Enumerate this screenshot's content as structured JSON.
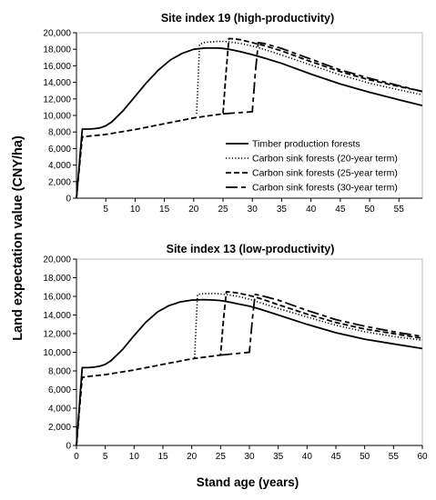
{
  "figure": {
    "ylabel": "Land expectation value (CNY/ha)",
    "xlabel": "Stand age (years)"
  },
  "legend": [
    {
      "name": "Timber production forests",
      "dash": "none"
    },
    {
      "name": "Carbon sink forests (20-year term)",
      "dash": "1.2 2.2"
    },
    {
      "name": "Carbon sink forests (25-year term)",
      "dash": "6 3"
    },
    {
      "name": "Carbon sink forests (30-year term)",
      "dash": "13 4 5 4"
    }
  ],
  "chart_data": [
    {
      "type": "line",
      "title": "Site index 19 (high-productivity)",
      "xlim": [
        0,
        59
      ],
      "ylim": [
        0,
        20000
      ],
      "xticks": [
        "5",
        "10",
        "15",
        "20",
        "25",
        "30",
        "35",
        "40",
        "45",
        "50",
        "55"
      ],
      "xtick_values": [
        5,
        10,
        15,
        20,
        25,
        30,
        35,
        40,
        45,
        50,
        55
      ],
      "yticks": [
        "0",
        "2,000",
        "4,000",
        "6,000",
        "8,000",
        "10,000",
        "12,000",
        "14,000",
        "16,000",
        "18,000",
        "20,000"
      ],
      "ytick_values": [
        0,
        2000,
        4000,
        6000,
        8000,
        10000,
        12000,
        14000,
        16000,
        18000,
        20000
      ],
      "grid": false,
      "legend_position": "bottom-right",
      "series": [
        {
          "name": "Timber production forests",
          "x": [
            0,
            1,
            2,
            3,
            4,
            5,
            6,
            8,
            10,
            12,
            14,
            16,
            18,
            20,
            22,
            24,
            25,
            26,
            28,
            30,
            32,
            35,
            40,
            45,
            50,
            55,
            59
          ],
          "y": [
            0,
            8350,
            8350,
            8400,
            8500,
            8750,
            9200,
            10600,
            12300,
            14000,
            15500,
            16700,
            17500,
            18000,
            18150,
            18150,
            18100,
            18000,
            17700,
            17350,
            16950,
            16300,
            15000,
            13800,
            12800,
            11900,
            11200
          ]
        },
        {
          "name": "Carbon sink forests (20-year term)",
          "x": [
            20.5,
            21,
            22,
            24,
            25,
            26,
            28,
            30,
            32,
            35,
            40,
            45,
            50,
            55,
            59
          ],
          "y": [
            10200,
            18600,
            18850,
            18950,
            18950,
            18900,
            18700,
            18400,
            18000,
            17300,
            16100,
            14900,
            13900,
            13100,
            12500
          ]
        },
        {
          "name": "Carbon sink forests (25-year term)",
          "x": [
            0,
            1,
            2,
            5,
            10,
            15,
            20,
            25,
            25.5,
            26,
            27,
            28,
            30,
            32,
            35,
            40,
            45,
            50,
            55,
            59
          ],
          "y": [
            0,
            7400,
            7500,
            7700,
            8300,
            9000,
            9700,
            10200,
            15000,
            19300,
            19250,
            19150,
            18800,
            18450,
            17800,
            16500,
            15300,
            14300,
            13500,
            12900
          ]
        },
        {
          "name": "Carbon sink forests (30-year term)",
          "x": [
            25,
            30,
            30.5,
            31,
            32,
            35,
            40,
            45,
            50,
            55,
            59
          ],
          "y": [
            10200,
            10450,
            15000,
            18800,
            18700,
            18100,
            16800,
            15500,
            14500,
            13600,
            12900
          ]
        }
      ]
    },
    {
      "type": "line",
      "title": "Site index 13 (low-productivity)",
      "xlim": [
        0,
        60
      ],
      "ylim": [
        0,
        20000
      ],
      "xticks": [
        "0",
        "5",
        "10",
        "15",
        "20",
        "25",
        "30",
        "35",
        "40",
        "45",
        "50",
        "55",
        "60"
      ],
      "xtick_values": [
        0,
        5,
        10,
        15,
        20,
        25,
        30,
        35,
        40,
        45,
        50,
        55,
        60
      ],
      "yticks": [
        "0",
        "2,000",
        "4,000",
        "6,000",
        "8,000",
        "10,000",
        "12,000",
        "14,000",
        "16,000",
        "18,000",
        "20,000"
      ],
      "ytick_values": [
        0,
        2000,
        4000,
        6000,
        8000,
        10000,
        12000,
        14000,
        16000,
        18000,
        20000
      ],
      "grid": false,
      "series": [
        {
          "name": "Timber production forests",
          "x": [
            0,
            1,
            2,
            3,
            4,
            5,
            6,
            8,
            10,
            12,
            14,
            16,
            18,
            20,
            22,
            24,
            25,
            26,
            28,
            30,
            32,
            35,
            40,
            45,
            50,
            55,
            60
          ],
          "y": [
            0,
            8350,
            8350,
            8400,
            8500,
            8700,
            9100,
            10300,
            11800,
            13200,
            14300,
            15000,
            15400,
            15600,
            15650,
            15600,
            15550,
            15450,
            15200,
            14950,
            14600,
            14000,
            13000,
            12100,
            11400,
            10900,
            10400
          ]
        },
        {
          "name": "Carbon sink forests (20-year term)",
          "x": [
            20.5,
            21,
            22,
            24,
            25,
            26,
            28,
            30,
            32,
            35,
            40,
            45,
            50,
            55,
            60
          ],
          "y": [
            9400,
            16200,
            16300,
            16300,
            16250,
            16200,
            16000,
            15700,
            15300,
            14700,
            13800,
            12900,
            12200,
            11700,
            11300
          ]
        },
        {
          "name": "Carbon sink forests (25-year term)",
          "x": [
            0,
            1,
            2,
            5,
            10,
            15,
            20,
            25,
            25.5,
            26,
            27,
            28,
            30,
            32,
            35,
            40,
            45,
            50,
            55,
            60
          ],
          "y": [
            0,
            7300,
            7400,
            7600,
            8100,
            8700,
            9300,
            9700,
            13500,
            16500,
            16450,
            16350,
            16100,
            15750,
            15100,
            14100,
            13200,
            12500,
            12000,
            11500
          ]
        },
        {
          "name": "Carbon sink forests (30-year term)",
          "x": [
            25,
            30,
            30.5,
            31,
            32,
            35,
            40,
            45,
            50,
            55,
            60
          ],
          "y": [
            9700,
            10000,
            13500,
            16200,
            16100,
            15600,
            14500,
            13500,
            12800,
            12200,
            11700
          ]
        }
      ]
    }
  ]
}
